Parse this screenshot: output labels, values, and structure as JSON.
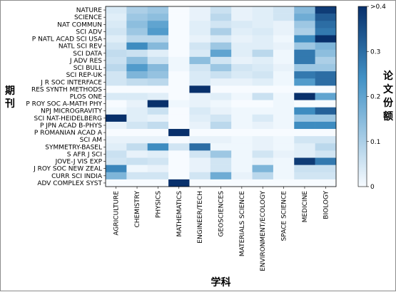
{
  "chart_data": {
    "type": "heatmap",
    "title": "",
    "xlabel": "学科",
    "ylabel": "期刊",
    "colorbar_label": "论文份额",
    "colormap": [
      "#f7fbff",
      "#08306b"
    ],
    "vmin": 0,
    "vmax": 0.4,
    "colorbar_ticks": [
      {
        "value": 0,
        "label": "0"
      },
      {
        "value": 0.1,
        "label": "0.1"
      },
      {
        "value": 0.2,
        "label": "0.2"
      },
      {
        "value": 0.3,
        "label": "0.3"
      },
      {
        "value": 0.4,
        "label": ">0.4"
      }
    ],
    "x_categories": [
      "AGRICULTURE",
      "CHEMISTRY",
      "PHYSICS",
      "MATHEMATICS",
      "ENGINEER/TECH",
      "GEOSCIENCES",
      "MATERIALS SCIENCE",
      "ENVIRONMENT/ECOLOGY",
      "SPACE SCIENCE",
      "MEDICINE",
      "BIOLOGY"
    ],
    "y_categories": [
      "NATURE",
      "SCIENCE",
      "NAT COMMUN",
      "SCI ADV",
      "P NATL ACAD SCI USA",
      "NATL SCI REV",
      "SCI DATA",
      "J ADV RES",
      "SCI BULL",
      "SCI REP-UK",
      "J R SOC INTERFACE",
      "RES SYNTH METHODS",
      "PLOS ONE",
      "P ROY SOC A-MATH PHY",
      "NPJ MICROGRAVITY",
      "SCI NAT-HEIDELBERG",
      "P JPN ACAD B-PHYS",
      "P ROMANIAN ACAD A",
      "SCI AM",
      "SYMMETRY-BASEL",
      "S AFR J SCI",
      "JOVE-J VIS EXP",
      "J ROY SOC NEW ZEAL",
      "CURR SCI INDIA",
      "ADV COMPLEX SYST"
    ],
    "values": [
      [
        0.04,
        0.1,
        0.12,
        0.0,
        0.02,
        0.06,
        0.02,
        0.03,
        0.05,
        0.15,
        0.38
      ],
      [
        0.03,
        0.12,
        0.14,
        0.0,
        0.02,
        0.08,
        0.02,
        0.03,
        0.05,
        0.18,
        0.33
      ],
      [
        0.04,
        0.14,
        0.2,
        0.0,
        0.03,
        0.05,
        0.04,
        0.03,
        0.02,
        0.12,
        0.3
      ],
      [
        0.05,
        0.12,
        0.22,
        0.0,
        0.03,
        0.1,
        0.03,
        0.04,
        0.02,
        0.1,
        0.28
      ],
      [
        0.03,
        0.08,
        0.08,
        0.0,
        0.02,
        0.04,
        0.02,
        0.03,
        0.01,
        0.25,
        0.4
      ],
      [
        0.05,
        0.25,
        0.15,
        0.0,
        0.05,
        0.12,
        0.03,
        0.03,
        0.02,
        0.12,
        0.16
      ],
      [
        0.07,
        0.06,
        0.03,
        0.0,
        0.04,
        0.2,
        0.03,
        0.08,
        0.01,
        0.28,
        0.14
      ],
      [
        0.06,
        0.14,
        0.06,
        0.01,
        0.14,
        0.05,
        0.02,
        0.03,
        0.01,
        0.28,
        0.1
      ],
      [
        0.08,
        0.22,
        0.15,
        0.01,
        0.05,
        0.12,
        0.05,
        0.04,
        0.02,
        0.12,
        0.12
      ],
      [
        0.05,
        0.16,
        0.13,
        0.0,
        0.04,
        0.06,
        0.04,
        0.05,
        0.01,
        0.28,
        0.3
      ],
      [
        0.05,
        0.07,
        0.08,
        0.0,
        0.04,
        0.02,
        0.02,
        0.03,
        0.01,
        0.22,
        0.3
      ],
      [
        0.0,
        0.0,
        0.0,
        0.0,
        0.4,
        0.0,
        0.0,
        0.0,
        0.0,
        0.0,
        0.0
      ],
      [
        0.04,
        0.04,
        0.03,
        0.0,
        0.02,
        0.03,
        0.01,
        0.06,
        0.01,
        0.4,
        0.2
      ],
      [
        0.0,
        0.02,
        0.4,
        0.01,
        0.02,
        0.01,
        0.0,
        0.0,
        0.01,
        0.0,
        0.0
      ],
      [
        0.01,
        0.03,
        0.06,
        0.0,
        0.04,
        0.02,
        0.01,
        0.01,
        0.01,
        0.25,
        0.32
      ],
      [
        0.4,
        0.03,
        0.02,
        0.0,
        0.03,
        0.05,
        0.01,
        0.04,
        0.01,
        0.12,
        0.12
      ],
      [
        0.02,
        0.05,
        0.07,
        0.0,
        0.02,
        0.08,
        0.01,
        0.02,
        0.01,
        0.25,
        0.25
      ],
      [
        0.0,
        0.0,
        0.0,
        0.4,
        0.0,
        0.0,
        0.0,
        0.0,
        0.0,
        0.0,
        0.0
      ],
      [
        0.02,
        0.02,
        0.02,
        0.0,
        0.02,
        0.02,
        0.01,
        0.02,
        0.01,
        0.05,
        0.05
      ],
      [
        0.03,
        0.07,
        0.25,
        0.05,
        0.3,
        0.01,
        0.01,
        0.02,
        0.01,
        0.03,
        0.08
      ],
      [
        0.06,
        0.02,
        0.03,
        0.0,
        0.05,
        0.12,
        0.01,
        0.05,
        0.02,
        0.03,
        0.05
      ],
      [
        0.05,
        0.06,
        0.05,
        0.0,
        0.02,
        0.05,
        0.01,
        0.02,
        0.01,
        0.38,
        0.28
      ],
      [
        0.26,
        0.01,
        0.02,
        0.0,
        0.02,
        0.05,
        0.01,
        0.16,
        0.01,
        0.06,
        0.06
      ],
      [
        0.16,
        0.05,
        0.05,
        0.0,
        0.05,
        0.18,
        0.02,
        0.08,
        0.01,
        0.05,
        0.05
      ],
      [
        0.0,
        0.0,
        0.0,
        0.4,
        0.0,
        0.0,
        0.0,
        0.0,
        0.0,
        0.0,
        0.0
      ]
    ]
  }
}
